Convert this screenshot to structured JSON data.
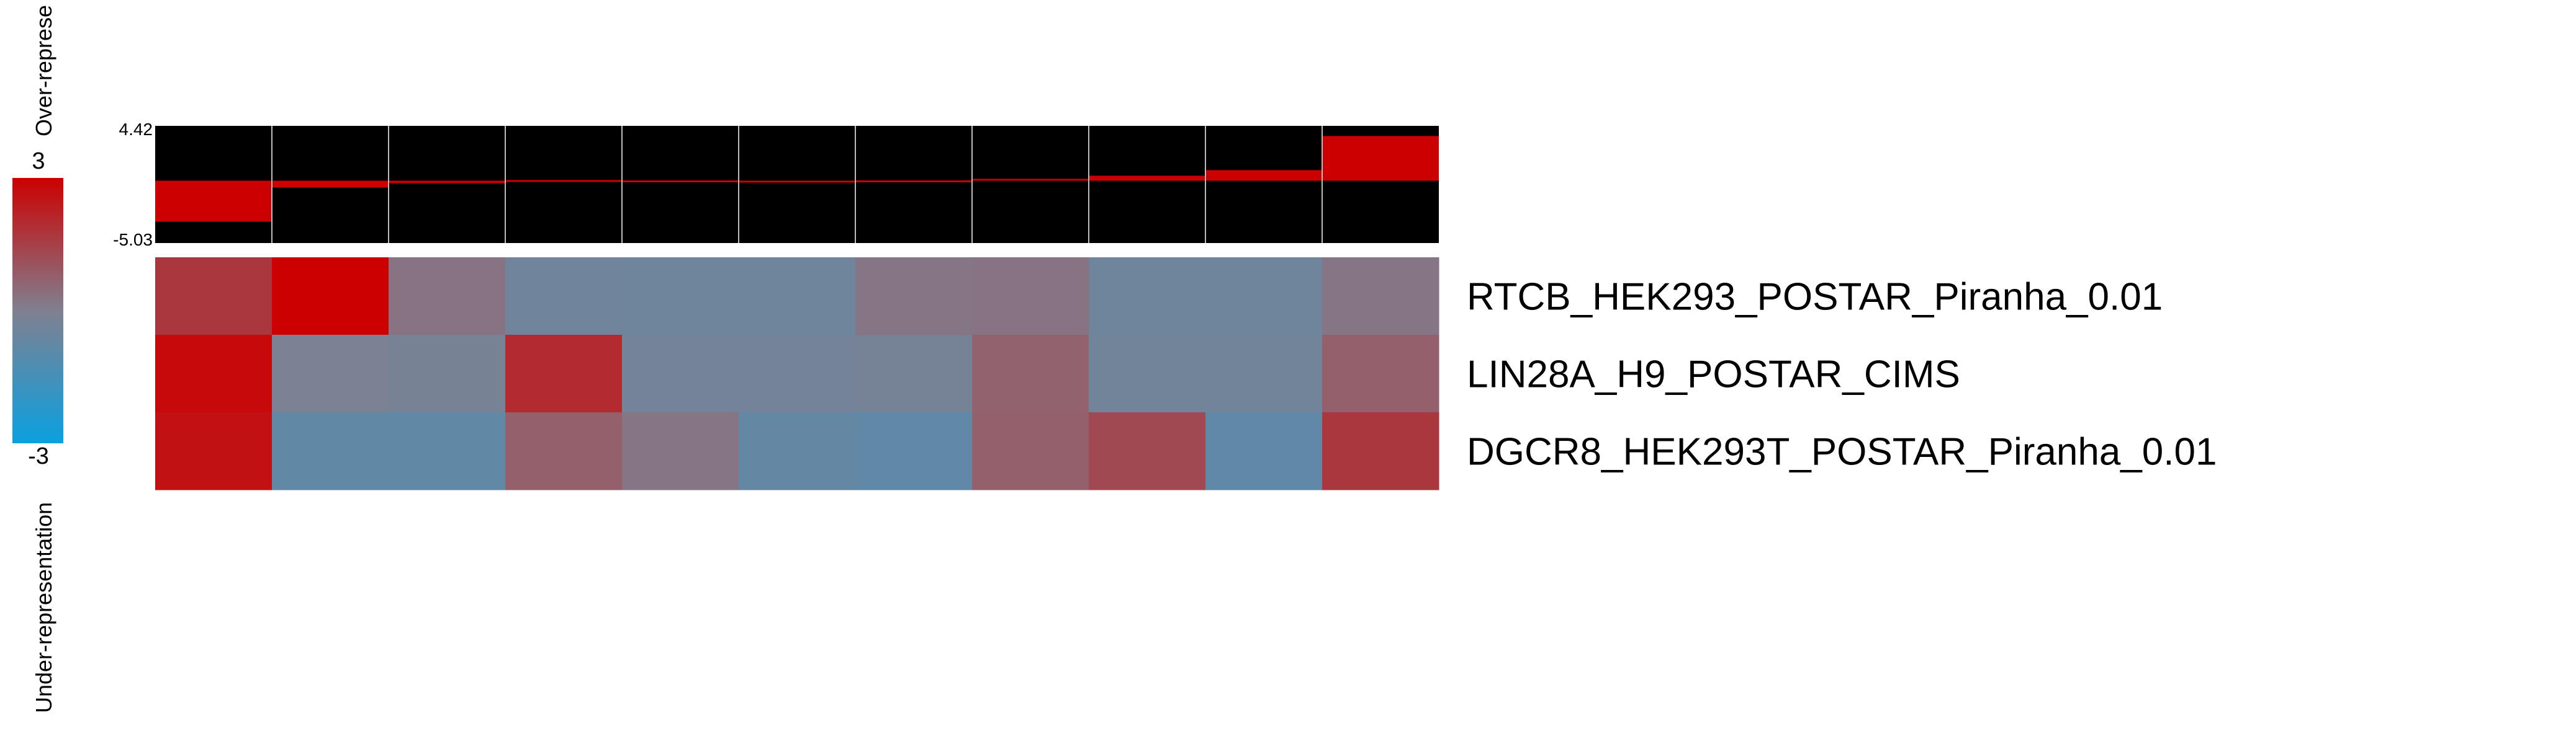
{
  "chart_data": {
    "type": "heatmap",
    "colorbar": {
      "max_label": "3",
      "min_label": "-3",
      "top_label": "Over-represe",
      "bottom_label": "Under-representation",
      "range": [
        -3,
        3
      ],
      "colors": {
        "low": "#0aa0e0",
        "mid": "#808090",
        "high": "#cc0000"
      }
    },
    "bar_axis": {
      "max_label": "4.42",
      "min_label": "-5.03",
      "range": [
        -5.03,
        4.42
      ]
    },
    "bar_values": [
      -3.3,
      -0.55,
      -0.2,
      0.05,
      0.02,
      0.0,
      0.02,
      0.15,
      0.4,
      0.85,
      3.6
    ],
    "rows": [
      {
        "label": "RTCB_HEK293_POSTAR_Piranha_0.01",
        "values": [
          1.7,
          3.0,
          0.3,
          -0.4,
          -0.45,
          -0.45,
          0.25,
          0.3,
          -0.45,
          -0.45,
          0.25
        ]
      },
      {
        "label": "LIN28A_H9_POSTAR_CIMS",
        "values": [
          2.8,
          -0.1,
          -0.2,
          2.0,
          -0.3,
          -0.3,
          -0.25,
          0.7,
          -0.35,
          -0.35,
          0.75
        ]
      },
      {
        "label": "DGCR8_HEK293T_POSTAR_Piranha_0.01",
        "values": [
          2.6,
          -0.8,
          -0.8,
          0.75,
          0.25,
          -0.7,
          -0.85,
          0.75,
          1.3,
          -0.85,
          1.7
        ]
      }
    ]
  }
}
